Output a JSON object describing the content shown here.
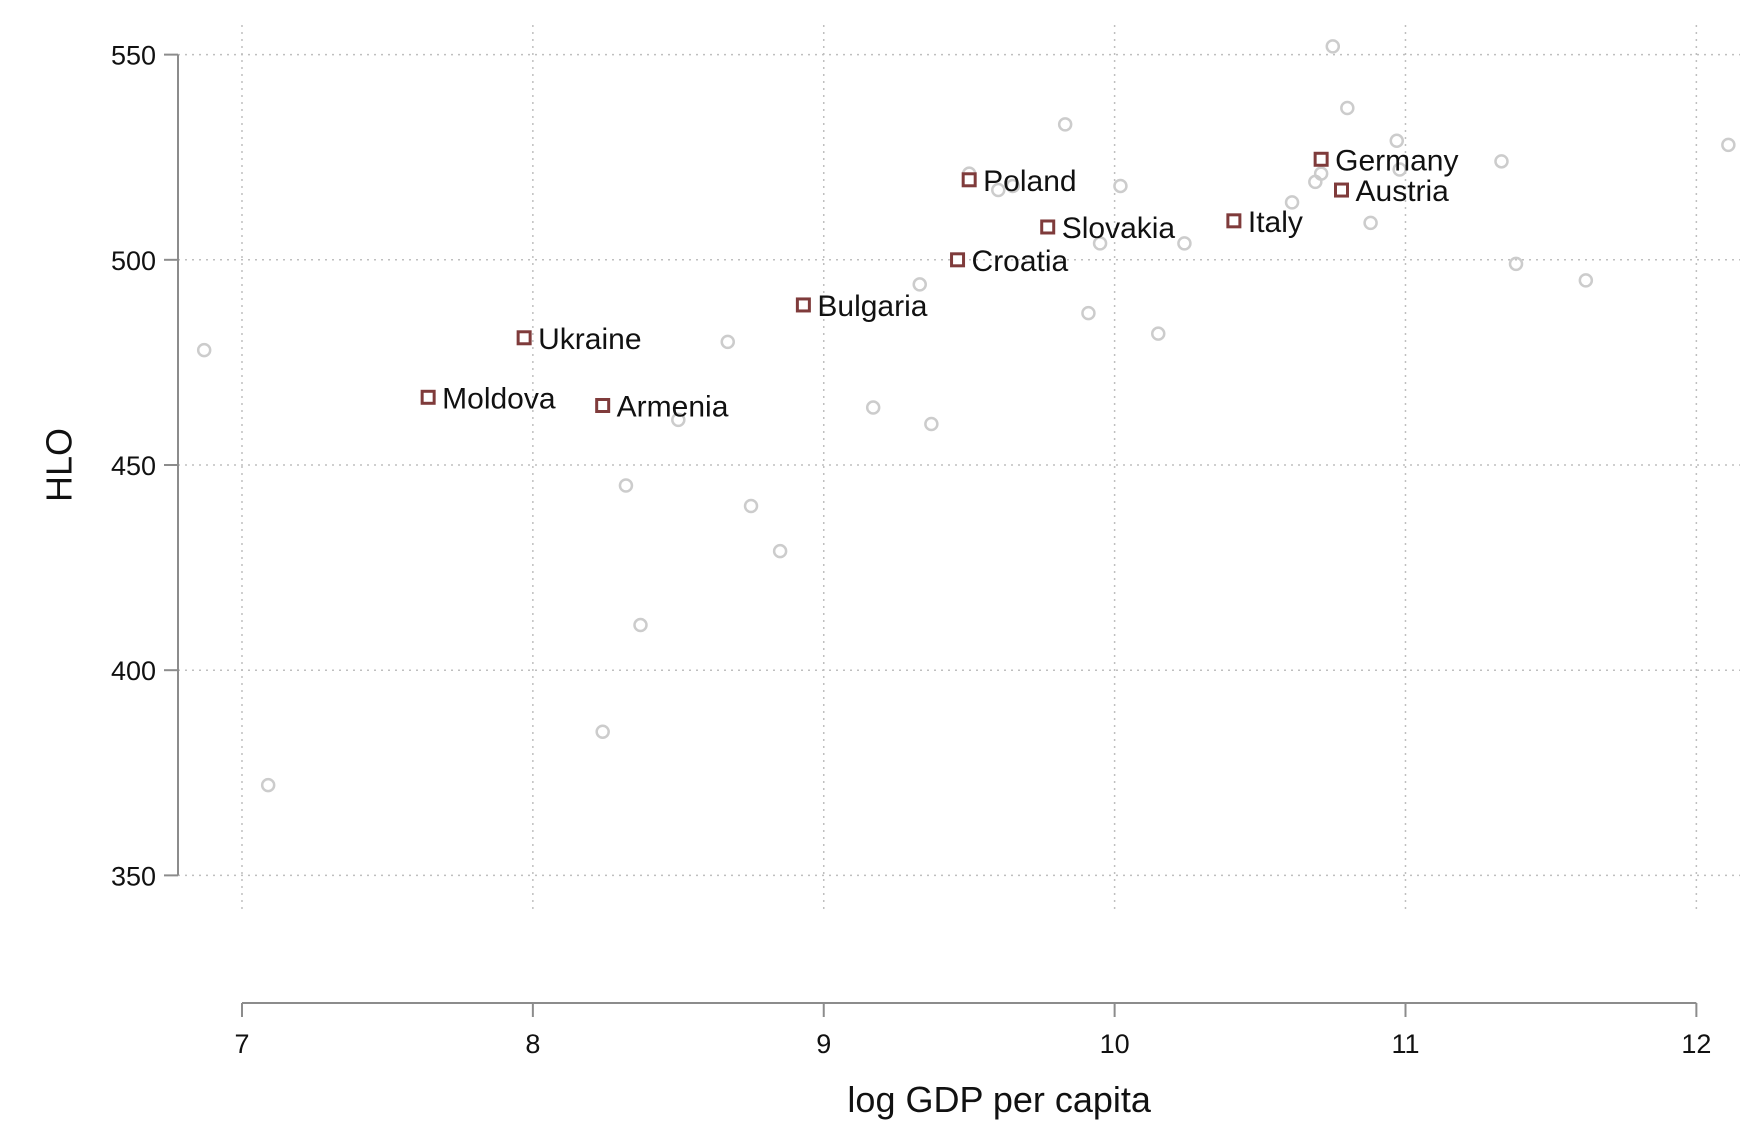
{
  "chart_data": {
    "type": "scatter",
    "title": "",
    "xlabel": "log GDP per capita",
    "ylabel": "HLO",
    "xlim": [
      6.78,
      12.15
    ],
    "ylim": [
      344,
      556
    ],
    "xticks": [
      "7",
      "8",
      "9",
      "10",
      "11",
      "12"
    ],
    "yticks": [
      "350",
      "400",
      "450",
      "500",
      "550"
    ],
    "grid": true,
    "legend": "none",
    "colors": {
      "background": "#ffffff",
      "grid": "#bfbfbf",
      "axis": "#8c8c8c",
      "others": "#cccccc",
      "highlight": "#7f3b3b"
    },
    "series": [
      {
        "marker": "circle",
        "x": [
          6.87,
          7.09,
          8.32,
          8.37,
          8.24,
          8.5,
          8.67,
          8.75,
          8.85,
          9.17,
          9.33,
          9.37,
          9.5,
          9.6,
          9.65,
          9.83,
          9.91,
          9.95,
          10.02,
          10.15,
          10.24,
          10.61,
          10.69,
          10.71,
          10.75,
          10.8,
          10.88,
          10.97,
          10.98,
          11.33,
          11.38,
          11.62,
          12.11
        ],
        "y": [
          478,
          372,
          445,
          411,
          385,
          461,
          480,
          440,
          429,
          464,
          494,
          460,
          521,
          517,
          518,
          533,
          487,
          504,
          518,
          482,
          504,
          514,
          519,
          521,
          552,
          537,
          509,
          529,
          522,
          524,
          499,
          495,
          528
        ]
      },
      {
        "marker": "square",
        "points": [
          {
            "label": "Poland",
            "x": 9.5,
            "y": 519.5
          },
          {
            "label": "Germany",
            "x": 10.71,
            "y": 524.5
          },
          {
            "label": "Austria",
            "x": 10.78,
            "y": 517
          },
          {
            "label": "Slovakia",
            "x": 9.77,
            "y": 508
          },
          {
            "label": "Italy",
            "x": 10.41,
            "y": 509.5
          },
          {
            "label": "Croatia",
            "x": 9.46,
            "y": 500
          },
          {
            "label": "Bulgaria",
            "x": 8.93,
            "y": 489
          },
          {
            "label": "Ukraine",
            "x": 7.97,
            "y": 481
          },
          {
            "label": "Moldova",
            "x": 7.64,
            "y": 466.5
          },
          {
            "label": "Armenia",
            "x": 8.24,
            "y": 464.5
          }
        ]
      }
    ]
  }
}
